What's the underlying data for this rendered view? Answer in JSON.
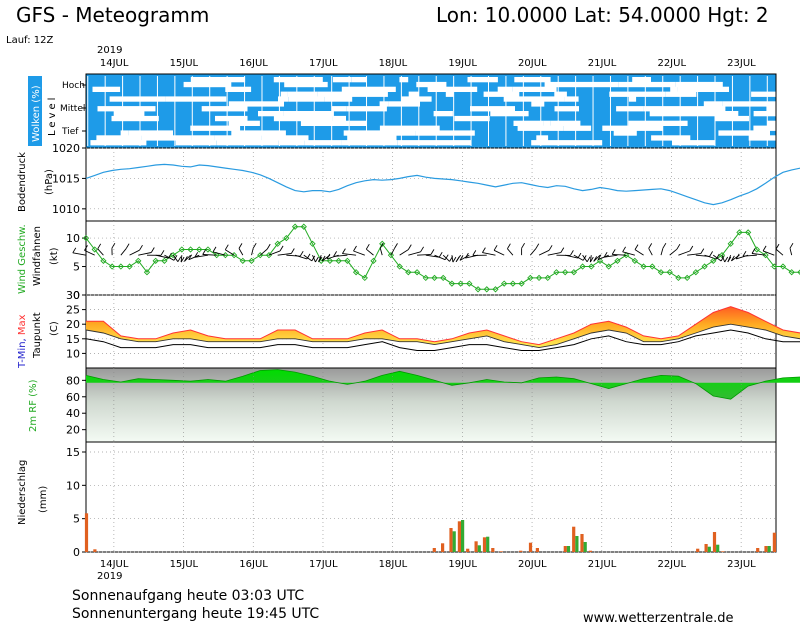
{
  "header": {
    "title": "GFS - Meteogramm",
    "location": "Lon: 10.0000 Lat: 54.0000 Hgt: 2",
    "run": "Lauf: 12Z"
  },
  "axis": {
    "year": "2019",
    "dates": [
      "14JUL",
      "15JUL",
      "16JUL",
      "17JUL",
      "18JUL",
      "19JUL",
      "20JUL",
      "21JUL",
      "22JUL",
      "23JUL"
    ]
  },
  "footer": {
    "sunrise": "Sonnenaufgang heute 03:03 UTC",
    "sunset": "Sonnenuntergang heute 19:45 UTC",
    "website": "www.wetterzentrale.de"
  },
  "colors": {
    "cloud_bg": "#1e9be8",
    "pressure": "#2a9be0",
    "wind": "#22aa22",
    "tmax": "#ff3333",
    "tmin": "#2222cc",
    "dew": "#000000",
    "humidity": "#11cc11",
    "precip_total": "#e06020",
    "precip_conv": "#33aa33"
  },
  "chart_data": [
    {
      "type": "heatmap",
      "panel": "clouds",
      "ylabel": "Wolken (%)",
      "ylabel2": "Level",
      "levels": [
        "Hoch",
        "Mittel",
        "Tief"
      ]
    },
    {
      "type": "line",
      "panel": "pressure",
      "ylabel": "Bodendruck",
      "unit": "(hPa)",
      "ylim": [
        1008,
        1020
      ],
      "yticks": [
        1010,
        1015,
        1020
      ],
      "x_start": 13.6,
      "x_step": 0.125,
      "values": [
        1015,
        1015.5,
        1016,
        1016.3,
        1016.5,
        1016.6,
        1016.8,
        1017,
        1017.2,
        1017.3,
        1017.2,
        1017,
        1016.9,
        1017.2,
        1017.1,
        1016.9,
        1016.7,
        1016.5,
        1016.3,
        1016,
        1015.6,
        1015,
        1014.3,
        1013.6,
        1013,
        1012.8,
        1013,
        1013,
        1012.8,
        1013.2,
        1013.8,
        1014.3,
        1014.6,
        1014.8,
        1014.7,
        1014.8,
        1015,
        1015.3,
        1015.5,
        1015.2,
        1015,
        1014.9,
        1014.8,
        1014.6,
        1014.4,
        1014.2,
        1013.9,
        1013.6,
        1013.9,
        1014.2,
        1014.3,
        1014,
        1013.7,
        1013.5,
        1013.8,
        1013.7,
        1013.3,
        1013,
        1013.2,
        1013.5,
        1013.3,
        1013,
        1012.9,
        1013,
        1013.1,
        1013.2,
        1013.3,
        1013,
        1012.5,
        1012,
        1011.5,
        1011,
        1010.7,
        1011,
        1011.5,
        1012.1,
        1012.6,
        1013.3,
        1014.2,
        1015.2,
        1016,
        1016.4,
        1016.7,
        1017.1,
        1017.8,
        1018.2,
        1017.8,
        1017.3,
        1017,
        1016.7,
        1016.4,
        1016.2,
        1016,
        1015.8,
        1015.6,
        1015.4,
        1015.3,
        1015.2,
        1015.1,
        1015,
        1014.8,
        1014.5,
        1014.3,
        1014.1,
        1013.5,
        1012.2,
        1011.2,
        1010.6,
        1010.4,
        1010.1
      ]
    },
    {
      "type": "line",
      "panel": "wind",
      "ylabel": "Wind Geschw.",
      "ylabel2": "Windfahnen",
      "unit": "(kt)",
      "ylim": [
        0,
        13
      ],
      "yticks": [
        0,
        5,
        10
      ],
      "x_start": 13.6,
      "x_step": 0.125,
      "values": [
        10,
        8,
        6,
        5,
        5,
        5,
        6,
        4,
        6,
        6,
        7,
        8,
        8,
        8,
        8,
        7,
        7,
        7,
        6,
        6,
        7,
        7,
        9,
        10,
        12,
        12,
        9,
        6,
        6,
        6,
        6,
        4,
        3,
        6,
        9,
        7,
        5,
        4,
        4,
        3,
        3,
        3,
        2,
        2,
        2,
        1,
        1,
        1,
        2,
        2,
        2,
        3,
        3,
        3,
        4,
        4,
        4,
        5,
        5,
        6,
        5,
        6,
        7,
        6,
        5,
        5,
        4,
        4,
        3,
        3,
        4,
        5,
        6,
        7,
        9,
        11,
        11,
        8,
        7,
        5,
        5,
        4,
        4,
        4,
        4,
        4,
        4,
        4,
        5,
        3,
        4,
        5,
        5,
        5,
        5,
        6,
        6,
        6,
        5,
        5,
        5,
        5,
        5,
        5,
        6,
        5,
        4,
        4,
        12,
        13
      ]
    },
    {
      "type": "area",
      "panel": "temperature",
      "ylabel": "T-Min, Max",
      "ylabel2": "Taupunkt",
      "unit": "(C)",
      "ylim": [
        5,
        30
      ],
      "yticks": [
        10,
        15,
        20,
        25,
        30
      ],
      "x_start": 13.6,
      "x_step": 0.25,
      "series": [
        {
          "name": "Max",
          "values": [
            21,
            21,
            16,
            15,
            15,
            17,
            18,
            16,
            15,
            15,
            15,
            18,
            18,
            15,
            15,
            15,
            17,
            18,
            15,
            15,
            14,
            15,
            17,
            18,
            16,
            14,
            13,
            15,
            17,
            20,
            21,
            19,
            16,
            15,
            16,
            20,
            24,
            26,
            24,
            21,
            18,
            17,
            20,
            22,
            24,
            23,
            19,
            15,
            16,
            20,
            23,
            25,
            24,
            21,
            18,
            20,
            24,
            25,
            23,
            21,
            22,
            25,
            28
          ]
        },
        {
          "name": "Min",
          "values": [
            18,
            17,
            15,
            14,
            14,
            15,
            15,
            14,
            14,
            14,
            14,
            15,
            15,
            14,
            14,
            14,
            15,
            15,
            14,
            14,
            13,
            14,
            15,
            16,
            14,
            13,
            12,
            13,
            15,
            17,
            18,
            17,
            14,
            14,
            15,
            17,
            19,
            20,
            19,
            18,
            16,
            15,
            17,
            18,
            19,
            19,
            17,
            14,
            15,
            17,
            19,
            20,
            20,
            18,
            16,
            17,
            19,
            20,
            20,
            19,
            18,
            20,
            22
          ]
        },
        {
          "name": "Taupunkt",
          "values": [
            15,
            14,
            12,
            12,
            12,
            13,
            13,
            12,
            12,
            12,
            12,
            13,
            13,
            12,
            12,
            12,
            13,
            14,
            12,
            11,
            11,
            12,
            13,
            13,
            12,
            11,
            11,
            12,
            13,
            15,
            16,
            14,
            13,
            13,
            14,
            16,
            17,
            18,
            17,
            15,
            14,
            14,
            15,
            16,
            17,
            17,
            15,
            13,
            14,
            15,
            17,
            18,
            18,
            16,
            15,
            16,
            17,
            18,
            19,
            18,
            17,
            19,
            21
          ]
        }
      ]
    },
    {
      "type": "area",
      "panel": "humidity",
      "ylabel": "2m RF (%)",
      "ylim": [
        5,
        95
      ],
      "yticks": [
        20,
        40,
        60,
        80
      ],
      "x_start": 13.6,
      "x_step": 0.25,
      "values": [
        86,
        81,
        78,
        82,
        81,
        80,
        79,
        81,
        79,
        85,
        92,
        93,
        90,
        85,
        79,
        75,
        79,
        86,
        91,
        86,
        80,
        74,
        77,
        81,
        78,
        77,
        83,
        84,
        82,
        76,
        70,
        76,
        82,
        86,
        85,
        76,
        61,
        57,
        73,
        79,
        83,
        84,
        81,
        79,
        78,
        79,
        86,
        91,
        88,
        80,
        76,
        82,
        88,
        84,
        81,
        79,
        79,
        81,
        87,
        91,
        87,
        80,
        76
      ]
    },
    {
      "type": "bar",
      "panel": "precipitation",
      "ylabel": "Niederschlag",
      "unit": "(mm)",
      "ylim": [
        0,
        16.5
      ],
      "yticks": [
        0,
        5,
        10,
        15
      ],
      "series": [
        {
          "name": "total",
          "x": [
            13.63,
            13.75,
            18.62,
            18.74,
            18.86,
            18.98,
            19.1,
            19.22,
            19.34,
            19.46,
            19.58,
            19.86,
            20.0,
            20.1,
            20.5,
            20.62,
            20.74,
            20.86,
            22.4,
            22.52,
            22.64,
            22.76,
            23.26,
            23.38,
            23.5
          ],
          "values": [
            5.8,
            0.4,
            0.6,
            1.3,
            3.6,
            4.6,
            0.5,
            1.6,
            2.2,
            0.6,
            0.1,
            0.2,
            1.4,
            0.6,
            0.9,
            3.8,
            2.7,
            0.2,
            0.5,
            1.2,
            3.0,
            0.1,
            0.6,
            0.9,
            2.9
          ]
        },
        {
          "name": "convective",
          "x": [
            18.86,
            18.98,
            19.22,
            19.34,
            20.5,
            20.62,
            20.74,
            22.52,
            22.64,
            23.38
          ],
          "values": [
            3.1,
            4.8,
            1.0,
            2.3,
            0.9,
            2.4,
            1.5,
            0.8,
            1.1,
            0.9
          ]
        }
      ]
    }
  ]
}
